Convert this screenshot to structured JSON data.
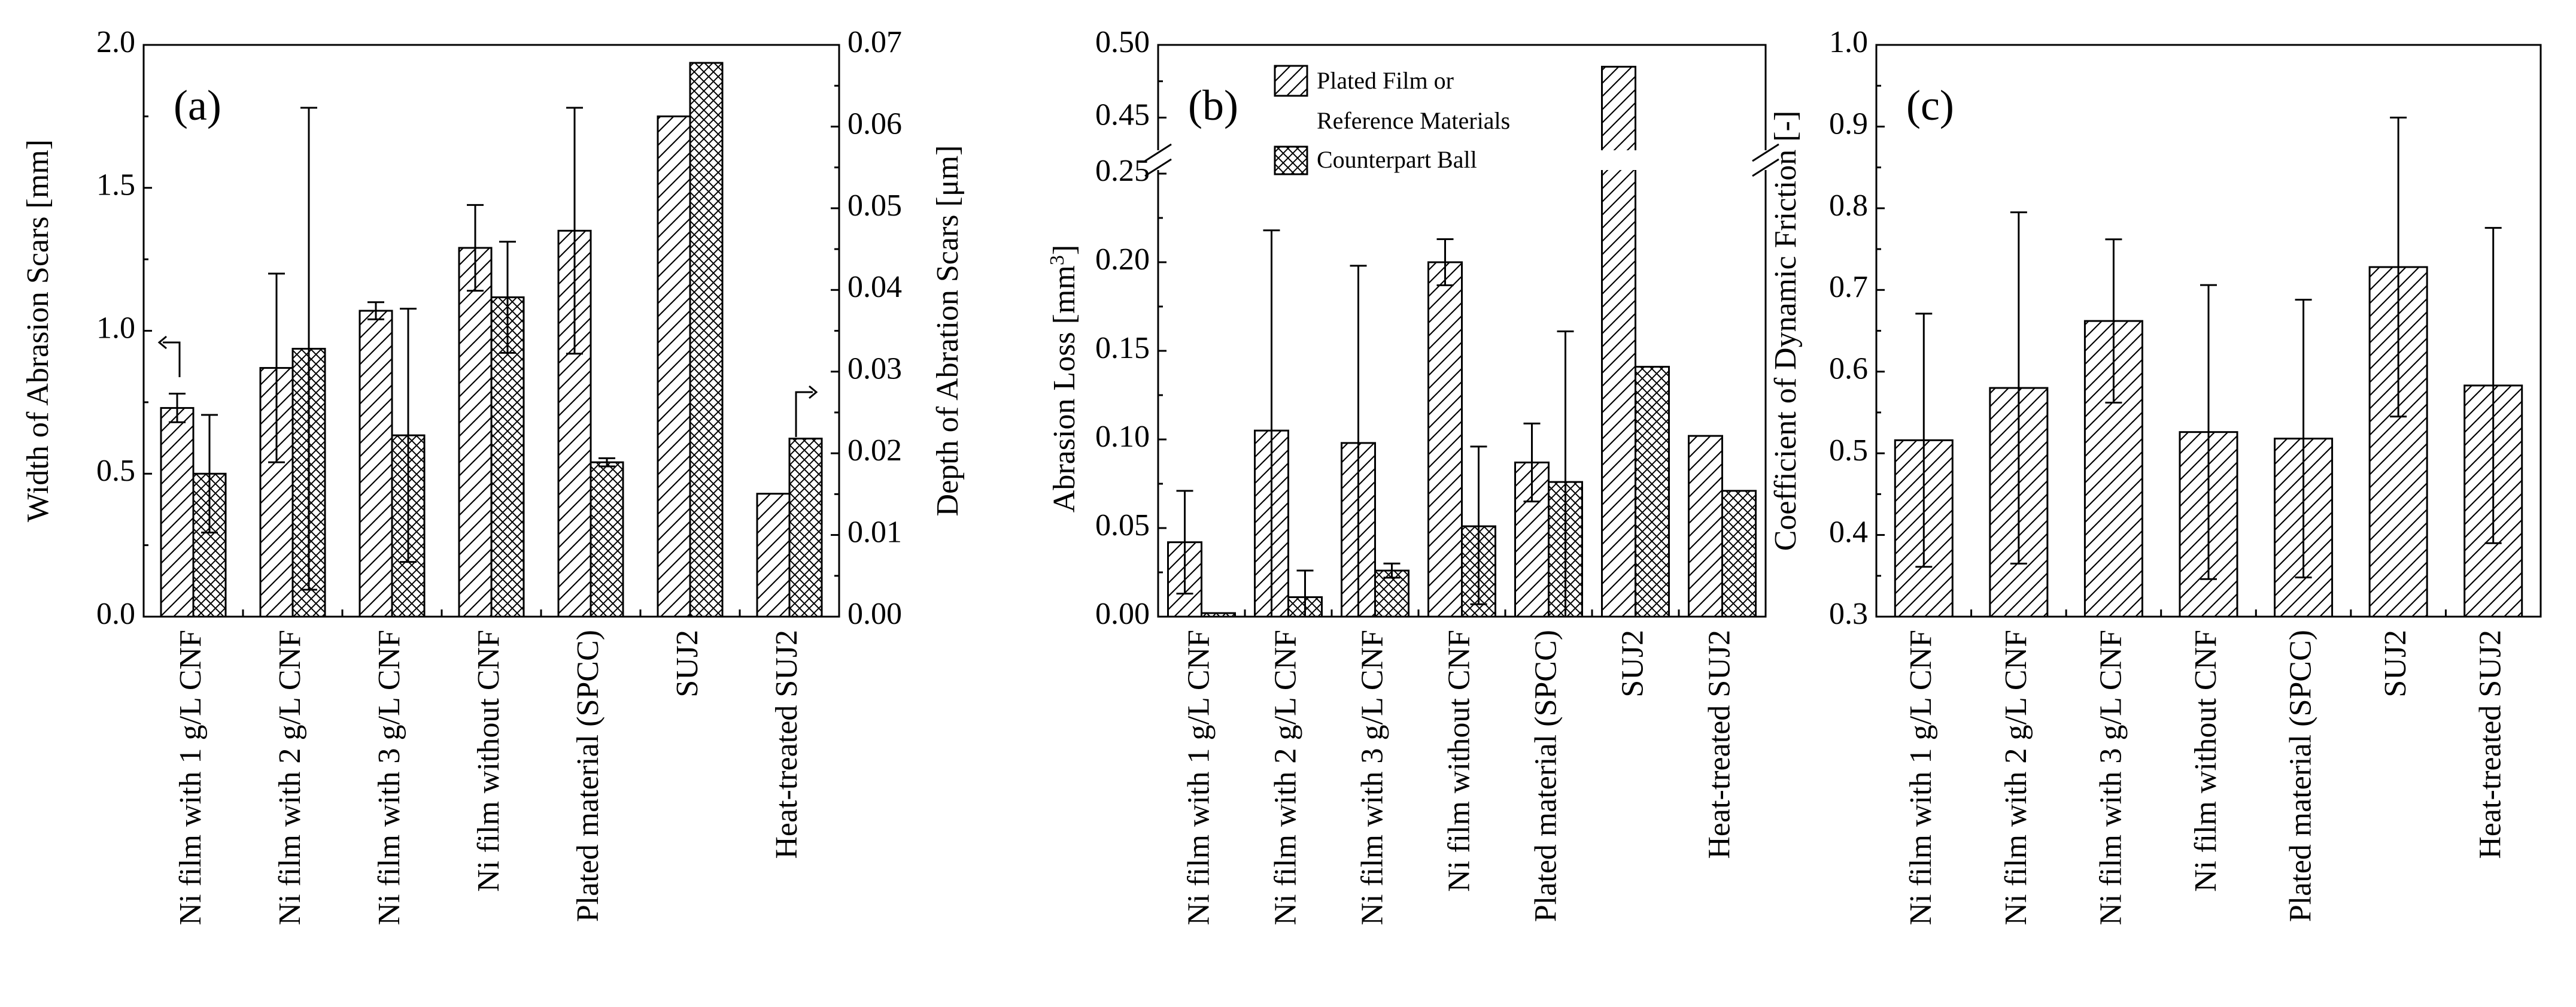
{
  "chart_data": [
    {
      "type": "bar",
      "panel_label": "(a)",
      "categories": [
        "Ni film with 1 g/L CNF",
        "Ni film with 2 g/L CNF",
        "Ni film with 3 g/L CNF",
        "Ni film without CNF",
        "Plated material (SPCC)",
        "SUJ2",
        "Heat-treated SUJ2"
      ],
      "ylabel": "Width of Abrasion Scars [mm]",
      "ylim": [
        0,
        2.0
      ],
      "yticks": [
        "0.0",
        "0.5",
        "1.0",
        "1.5",
        "2.0"
      ],
      "y2label": "Depth of Abration Scars [μm]",
      "y2lim": [
        0,
        0.07
      ],
      "y2ticks": [
        "0.00",
        "0.01",
        "0.02",
        "0.03",
        "0.04",
        "0.05",
        "0.06",
        "0.07"
      ],
      "series": [
        {
          "name": "Width of Abrasion Scars",
          "axis": "left",
          "pattern": "hatch",
          "values": [
            0.73,
            0.87,
            1.07,
            1.29,
            1.35,
            1.75,
            0.43
          ],
          "err": [
            [
              0.05,
              0.05
            ],
            [
              0.33,
              0.33
            ],
            [
              0.03,
              0.03
            ],
            [
              0.15,
              0.15
            ],
            [
              0.43,
              0.43
            ],
            [
              0,
              0
            ],
            [
              0,
              0
            ]
          ]
        },
        {
          "name": "Depth of Abration Scars",
          "axis": "right",
          "pattern": "crosshatch",
          "values": [
            0.0175,
            0.0328,
            0.0222,
            0.0391,
            0.0189,
            0.0678,
            0.0218
          ],
          "err": [
            [
              0.0072,
              0.0072
            ],
            [
              0.0295,
              0.0295
            ],
            [
              0.0155,
              0.0155
            ],
            [
              0.0068,
              0.0068
            ],
            [
              0.0005,
              0.0005
            ],
            [
              0,
              0
            ],
            [
              0,
              0
            ]
          ]
        }
      ]
    },
    {
      "type": "bar",
      "panel_label": "(b)",
      "categories": [
        "Ni film with 1 g/L CNF",
        "Ni film with 2 g/L CNF",
        "Ni film with 3 g/L CNF",
        "Ni film without CNF",
        "Plated material (SPCC)",
        "SUJ2",
        "Heat-treated SUJ2"
      ],
      "ylabel": "Abrasion Loss [mm",
      "ylabel_sup": "3",
      "ylabel_end": "]",
      "ylim_lower": [
        0,
        0.25
      ],
      "ylim_upper": [
        0.43,
        0.5
      ],
      "yticks": [
        "0.00",
        "0.05",
        "0.10",
        "0.15",
        "0.20",
        "0.25",
        "0.45",
        "0.50"
      ],
      "legend": [
        "Plated Film or",
        "Reference Materials",
        "Counterpart Ball"
      ],
      "series": [
        {
          "name": "Plated Film or Reference Materials",
          "pattern": "hatch",
          "values": [
            0.042,
            0.105,
            0.098,
            0.2,
            0.087,
            0.485,
            0.102
          ],
          "err": [
            [
              0.029,
              0.029
            ],
            [
              0.113,
              0.113
            ],
            [
              0.1,
              0.1
            ],
            [
              0.013,
              0.013
            ],
            [
              0.022,
              0.022
            ],
            [
              0,
              0
            ],
            [
              0,
              0
            ]
          ]
        },
        {
          "name": "Counterpart Ball",
          "pattern": "crosshatch",
          "values": [
            0.002,
            0.011,
            0.026,
            0.051,
            0.076,
            0.141,
            0.071
          ],
          "err": [
            [
              0,
              0
            ],
            [
              0.011,
              0.015
            ],
            [
              0.004,
              0.004
            ],
            [
              0.044,
              0.045
            ],
            [
              0.076,
              0.085
            ],
            [
              0,
              0
            ],
            [
              0,
              0
            ]
          ]
        }
      ]
    },
    {
      "type": "bar",
      "panel_label": "(c)",
      "categories": [
        "Ni film with 1 g/L CNF",
        "Ni film with 2 g/L CNF",
        "Ni film with 3 g/L CNF",
        "Ni film without CNF",
        "Plated material (SPCC)",
        "SUJ2",
        "Heat-treated SUJ2"
      ],
      "ylabel": "Coefficient of Dynamic Friction [-]",
      "ylim": [
        0.3,
        1.0
      ],
      "yticks": [
        "0.3",
        "0.4",
        "0.5",
        "0.6",
        "0.7",
        "0.8",
        "0.9",
        "1.0"
      ],
      "series": [
        {
          "name": "Coefficient of Dynamic Friction",
          "pattern": "hatch",
          "values": [
            0.516,
            0.58,
            0.662,
            0.526,
            0.518,
            0.728,
            0.583
          ],
          "err": [
            [
              0.155,
              0.155
            ],
            [
              0.215,
              0.215
            ],
            [
              0.1,
              0.1
            ],
            [
              0.18,
              0.18
            ],
            [
              0.17,
              0.17
            ],
            [
              0.183,
              0.183
            ],
            [
              0.193,
              0.193
            ]
          ]
        }
      ]
    }
  ]
}
